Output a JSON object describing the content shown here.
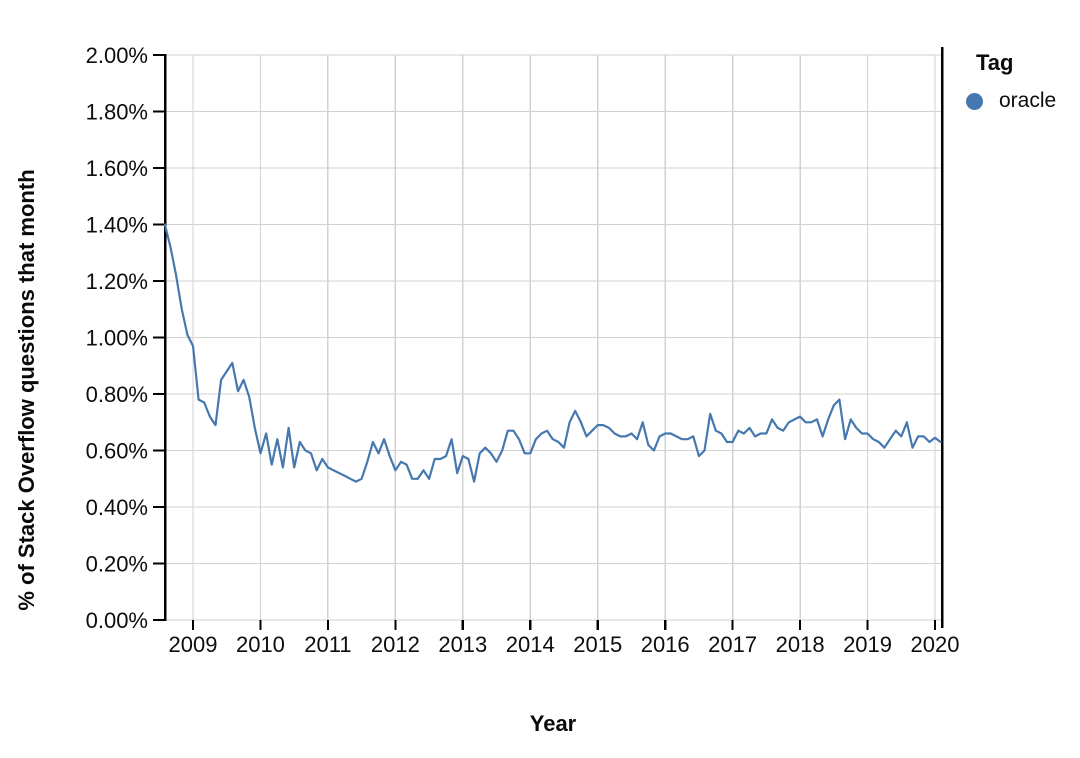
{
  "chart_data": {
    "type": "line",
    "title": "",
    "xlabel": "Year",
    "ylabel": "% of Stack Overflow questions that month",
    "legend": {
      "title": "Tag",
      "entries": [
        {
          "label": "oracle",
          "color": "#4678b0"
        }
      ]
    },
    "x_axis": {
      "tick_years": [
        2009,
        2010,
        2011,
        2012,
        2013,
        2014,
        2015,
        2016,
        2017,
        2018,
        2019,
        2020
      ]
    },
    "y_axis": {
      "min": 0,
      "max": 2,
      "tick_values": [
        2.0,
        1.8,
        1.6,
        1.4,
        1.2,
        1.0,
        0.8,
        0.6,
        0.4,
        0.2,
        0.0
      ],
      "tick_labels": [
        "2.00%",
        "1.80%",
        "1.60%",
        "1.40%",
        "1.20%",
        "1.00%",
        "0.80%",
        "0.60%",
        "0.40%",
        "0.20%",
        "0.00%"
      ]
    },
    "grid": true,
    "colors": {
      "line": "#4678b0",
      "gridline": "#d2d2d2",
      "axis": "#000000",
      "text": "#0d0d0d"
    },
    "series": [
      {
        "name": "oracle",
        "color": "#4678b0",
        "frequency": "monthly",
        "x_start": "2008-08",
        "x_end": "2020-02",
        "values": [
          1.4,
          1.32,
          1.22,
          1.1,
          1.01,
          0.97,
          0.78,
          0.77,
          0.72,
          0.69,
          0.85,
          0.88,
          0.91,
          0.81,
          0.85,
          0.79,
          0.68,
          0.59,
          0.66,
          0.55,
          0.64,
          0.54,
          0.68,
          0.54,
          0.63,
          0.6,
          0.59,
          0.53,
          0.57,
          0.54,
          0.53,
          0.52,
          0.51,
          0.5,
          0.49,
          0.5,
          0.56,
          0.63,
          0.59,
          0.64,
          0.58,
          0.53,
          0.56,
          0.55,
          0.5,
          0.5,
          0.53,
          0.5,
          0.57,
          0.57,
          0.58,
          0.64,
          0.52,
          0.58,
          0.57,
          0.49,
          0.59,
          0.61,
          0.59,
          0.56,
          0.6,
          0.67,
          0.67,
          0.64,
          0.59,
          0.59,
          0.64,
          0.66,
          0.67,
          0.64,
          0.63,
          0.61,
          0.7,
          0.74,
          0.7,
          0.65,
          0.67,
          0.69,
          0.69,
          0.68,
          0.66,
          0.65,
          0.65,
          0.66,
          0.64,
          0.7,
          0.62,
          0.6,
          0.65,
          0.66,
          0.66,
          0.65,
          0.64,
          0.64,
          0.65,
          0.58,
          0.6,
          0.73,
          0.67,
          0.66,
          0.63,
          0.63,
          0.67,
          0.66,
          0.68,
          0.65,
          0.66,
          0.66,
          0.71,
          0.68,
          0.67,
          0.7,
          0.71,
          0.72,
          0.7,
          0.7,
          0.71,
          0.65,
          0.71,
          0.76,
          0.78,
          0.64,
          0.71,
          0.68,
          0.66,
          0.66,
          0.64,
          0.63,
          0.61,
          0.64,
          0.67,
          0.65,
          0.7,
          0.61,
          0.65,
          0.65,
          0.63,
          0.645,
          0.63
        ]
      }
    ]
  }
}
